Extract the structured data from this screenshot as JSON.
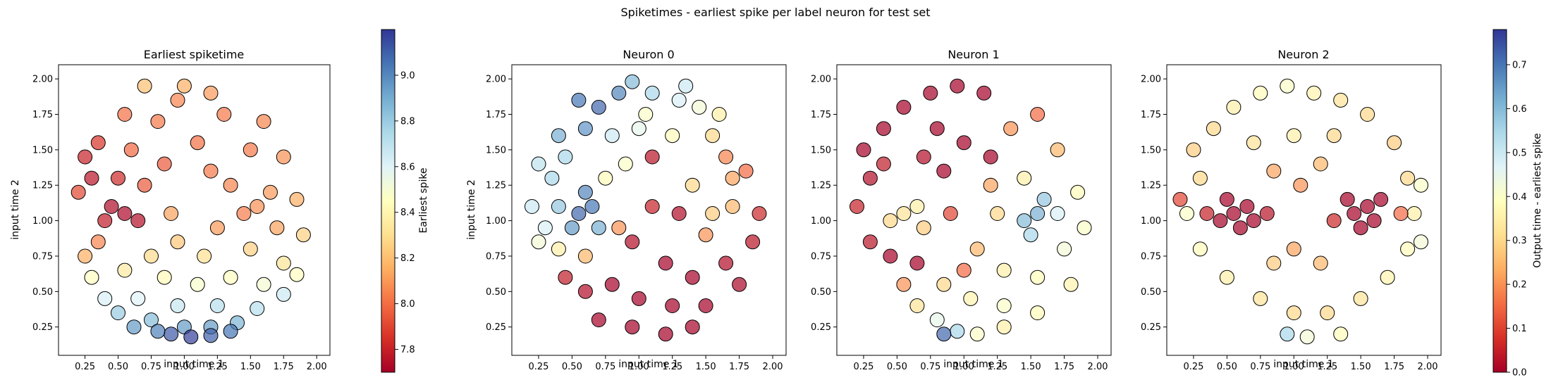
{
  "figure": {
    "suptitle": "Spiketimes - earliest spike per label neuron for test set"
  },
  "colors": {
    "cmap_low_to_high": [
      "#a50026",
      "#d73027",
      "#f46d43",
      "#fdae61",
      "#fee090",
      "#ffffbf",
      "#e0f3f8",
      "#abd9e9",
      "#74add1",
      "#4575b4",
      "#313695"
    ],
    "marker_edge": "#000000",
    "marker_alpha": 0.7
  },
  "chart_data": [
    {
      "type": "scatter",
      "title": "Earliest spiketime",
      "xlabel": "input time 1",
      "ylabel": "input time 2",
      "xlim": [
        0.05,
        2.1
      ],
      "ylim": [
        0.05,
        2.1
      ],
      "xticks": [
        "0.25",
        "0.50",
        "0.75",
        "1.00",
        "1.25",
        "1.50",
        "1.75",
        "2.00"
      ],
      "yticks": [
        "0.25",
        "0.50",
        "0.75",
        "1.00",
        "1.25",
        "1.50",
        "1.75",
        "2.00"
      ],
      "color_scale": [
        7.7,
        9.2
      ],
      "points": [
        [
          0.55,
          1.05,
          7.72
        ],
        [
          0.45,
          1.1,
          7.73
        ],
        [
          0.65,
          1.0,
          7.74
        ],
        [
          0.4,
          1.0,
          7.78
        ],
        [
          0.3,
          1.3,
          7.76
        ],
        [
          0.25,
          1.45,
          7.8
        ],
        [
          0.35,
          1.55,
          7.85
        ],
        [
          0.5,
          1.3,
          7.82
        ],
        [
          0.2,
          1.2,
          7.9
        ],
        [
          0.7,
          1.25,
          7.95
        ],
        [
          0.6,
          1.5,
          7.98
        ],
        [
          0.8,
          1.7,
          8.02
        ],
        [
          0.55,
          1.75,
          8.0
        ],
        [
          0.95,
          1.85,
          8.05
        ],
        [
          1.1,
          1.55,
          8.0
        ],
        [
          1.45,
          1.05,
          8.03
        ],
        [
          1.55,
          1.1,
          8.08
        ],
        [
          1.35,
          1.25,
          8.05
        ],
        [
          1.65,
          1.2,
          8.1
        ],
        [
          1.7,
          0.95,
          8.12
        ],
        [
          1.5,
          1.5,
          8.02
        ],
        [
          1.75,
          1.45,
          8.08
        ],
        [
          1.85,
          1.15,
          8.15
        ],
        [
          1.25,
          0.95,
          8.1
        ],
        [
          0.35,
          0.85,
          8.05
        ],
        [
          0.9,
          1.05,
          8.12
        ],
        [
          1.3,
          1.75,
          8.02
        ],
        [
          1.6,
          1.7,
          8.05
        ],
        [
          0.25,
          0.75,
          8.15
        ],
        [
          0.95,
          0.85,
          8.22
        ],
        [
          0.75,
          0.75,
          8.28
        ],
        [
          1.15,
          0.75,
          8.3
        ],
        [
          1.5,
          0.8,
          8.25
        ],
        [
          1.75,
          0.7,
          8.32
        ],
        [
          1.9,
          0.9,
          8.25
        ],
        [
          0.55,
          0.65,
          8.35
        ],
        [
          0.85,
          0.6,
          8.42
        ],
        [
          1.1,
          0.55,
          8.48
        ],
        [
          1.35,
          0.6,
          8.45
        ],
        [
          1.6,
          0.55,
          8.5
        ],
        [
          1.85,
          0.62,
          8.45
        ],
        [
          0.3,
          0.6,
          8.45
        ],
        [
          0.4,
          0.45,
          8.62
        ],
        [
          0.65,
          0.45,
          8.6
        ],
        [
          0.95,
          0.4,
          8.68
        ],
        [
          1.25,
          0.4,
          8.72
        ],
        [
          1.55,
          0.38,
          8.72
        ],
        [
          1.75,
          0.48,
          8.66
        ],
        [
          0.5,
          0.35,
          8.8
        ],
        [
          0.75,
          0.3,
          8.85
        ],
        [
          1.0,
          0.25,
          8.95
        ],
        [
          1.2,
          0.25,
          8.95
        ],
        [
          1.4,
          0.28,
          8.88
        ],
        [
          0.9,
          0.2,
          9.12
        ],
        [
          1.05,
          0.18,
          9.18
        ],
        [
          1.2,
          0.19,
          9.1
        ],
        [
          0.8,
          0.22,
          9.02
        ],
        [
          1.35,
          0.22,
          9.05
        ],
        [
          0.62,
          0.25,
          8.95
        ],
        [
          1.0,
          1.95,
          8.15
        ],
        [
          1.2,
          1.9,
          8.1
        ],
        [
          0.7,
          1.95,
          8.2
        ],
        [
          0.85,
          1.4,
          7.95
        ],
        [
          1.2,
          1.35,
          8.02
        ]
      ]
    },
    {
      "type": "scatter",
      "title": "Neuron 0",
      "xlabel": "input time 1",
      "ylabel": "input time 2",
      "xlim": [
        0.05,
        2.1
      ],
      "ylim": [
        0.05,
        2.1
      ],
      "xticks": [
        "0.25",
        "0.50",
        "0.75",
        "1.00",
        "1.25",
        "1.50",
        "1.75",
        "2.00"
      ],
      "yticks": [
        "0.25",
        "0.50",
        "0.75",
        "1.00",
        "1.25",
        "1.50",
        "1.75",
        "2.00"
      ],
      "color_scale": [
        0.0,
        0.78
      ],
      "points": [
        [
          0.55,
          1.05,
          0.72
        ],
        [
          0.65,
          1.1,
          0.7
        ],
        [
          0.5,
          0.95,
          0.65
        ],
        [
          0.7,
          0.95,
          0.62
        ],
        [
          0.6,
          1.2,
          0.68
        ],
        [
          0.4,
          1.1,
          0.58
        ],
        [
          0.35,
          1.3,
          0.55
        ],
        [
          0.25,
          1.4,
          0.52
        ],
        [
          0.2,
          1.1,
          0.5
        ],
        [
          0.3,
          0.95,
          0.48
        ],
        [
          0.45,
          1.45,
          0.55
        ],
        [
          0.4,
          1.6,
          0.62
        ],
        [
          0.6,
          1.65,
          0.66
        ],
        [
          0.7,
          1.8,
          0.72
        ],
        [
          0.55,
          1.85,
          0.7
        ],
        [
          0.85,
          1.9,
          0.68
        ],
        [
          0.95,
          1.98,
          0.6
        ],
        [
          1.1,
          1.9,
          0.55
        ],
        [
          1.3,
          1.85,
          0.48
        ],
        [
          1.45,
          1.8,
          0.42
        ],
        [
          1.6,
          1.75,
          0.35
        ],
        [
          0.8,
          1.6,
          0.5
        ],
        [
          1.0,
          1.65,
          0.45
        ],
        [
          1.25,
          1.6,
          0.38
        ],
        [
          0.9,
          1.4,
          0.4
        ],
        [
          0.75,
          1.3,
          0.38
        ],
        [
          0.25,
          0.85,
          0.42
        ],
        [
          0.4,
          0.8,
          0.35
        ],
        [
          1.4,
          1.25,
          0.3
        ],
        [
          1.55,
          1.05,
          0.28
        ],
        [
          1.7,
          1.1,
          0.25
        ],
        [
          1.5,
          0.9,
          0.2
        ],
        [
          1.8,
          1.35,
          0.15
        ],
        [
          1.65,
          1.45,
          0.18
        ],
        [
          1.1,
          1.1,
          0.05
        ],
        [
          0.95,
          0.85,
          0.02
        ],
        [
          1.2,
          0.7,
          0.0
        ],
        [
          1.4,
          0.6,
          0.0
        ],
        [
          1.65,
          0.7,
          0.02
        ],
        [
          1.85,
          0.85,
          0.03
        ],
        [
          1.9,
          1.05,
          0.06
        ],
        [
          0.8,
          0.55,
          0.0
        ],
        [
          1.0,
          0.45,
          0.0
        ],
        [
          1.25,
          0.4,
          0.0
        ],
        [
          1.5,
          0.4,
          0.0
        ],
        [
          1.75,
          0.55,
          0.01
        ],
        [
          0.6,
          0.5,
          0.02
        ],
        [
          0.45,
          0.6,
          0.04
        ],
        [
          0.7,
          0.3,
          0.0
        ],
        [
          0.95,
          0.25,
          0.0
        ],
        [
          1.2,
          0.2,
          0.0
        ],
        [
          1.4,
          0.25,
          0.0
        ],
        [
          1.1,
          1.45,
          0.03
        ],
        [
          1.3,
          1.05,
          0.02
        ],
        [
          1.55,
          1.6,
          0.3
        ],
        [
          1.7,
          1.3,
          0.22
        ],
        [
          1.05,
          1.75,
          0.4
        ],
        [
          1.35,
          1.95,
          0.5
        ],
        [
          0.6,
          0.75,
          0.25
        ],
        [
          0.85,
          0.95,
          0.2
        ]
      ]
    },
    {
      "type": "scatter",
      "title": "Neuron 1",
      "xlabel": "input time 1",
      "ylabel": "",
      "xlim": [
        0.05,
        2.1
      ],
      "ylim": [
        0.05,
        2.1
      ],
      "xticks": [
        "0.25",
        "0.50",
        "0.75",
        "1.00",
        "1.25",
        "1.50",
        "1.75",
        "2.00"
      ],
      "yticks": [
        "0.25",
        "0.50",
        "0.75",
        "1.00",
        "1.25",
        "1.50",
        "1.75",
        "2.00"
      ],
      "color_scale": [
        0.0,
        0.78
      ],
      "points": [
        [
          0.55,
          1.05,
          0.32
        ],
        [
          0.65,
          1.1,
          0.35
        ],
        [
          0.45,
          1.0,
          0.3
        ],
        [
          0.7,
          0.95,
          0.28
        ],
        [
          0.3,
          1.3,
          0.02
        ],
        [
          0.25,
          1.5,
          0.0
        ],
        [
          0.4,
          1.65,
          0.0
        ],
        [
          0.55,
          1.8,
          0.0
        ],
        [
          0.75,
          1.9,
          0.0
        ],
        [
          0.95,
          1.95,
          0.0
        ],
        [
          1.15,
          1.9,
          0.0
        ],
        [
          0.8,
          1.65,
          0.0
        ],
        [
          1.0,
          1.55,
          0.0
        ],
        [
          1.2,
          1.45,
          0.0
        ],
        [
          0.85,
          1.35,
          0.0
        ],
        [
          0.2,
          1.1,
          0.05
        ],
        [
          0.3,
          0.85,
          0.03
        ],
        [
          0.45,
          0.75,
          0.0
        ],
        [
          0.65,
          0.7,
          0.0
        ],
        [
          0.9,
          1.05,
          0.1
        ],
        [
          1.35,
          1.65,
          0.2
        ],
        [
          1.55,
          1.75,
          0.15
        ],
        [
          1.7,
          1.5,
          0.25
        ],
        [
          1.45,
          1.3,
          0.35
        ],
        [
          1.55,
          1.05,
          0.62
        ],
        [
          1.45,
          1.0,
          0.6
        ],
        [
          1.6,
          1.15,
          0.58
        ],
        [
          1.5,
          0.9,
          0.55
        ],
        [
          1.7,
          1.05,
          0.48
        ],
        [
          1.85,
          1.2,
          0.38
        ],
        [
          1.9,
          0.95,
          0.4
        ],
        [
          1.75,
          0.8,
          0.42
        ],
        [
          1.25,
          1.05,
          0.3
        ],
        [
          1.1,
          0.8,
          0.25
        ],
        [
          1.3,
          0.65,
          0.35
        ],
        [
          1.55,
          0.6,
          0.38
        ],
        [
          1.8,
          0.55,
          0.36
        ],
        [
          0.85,
          0.55,
          0.3
        ],
        [
          1.05,
          0.45,
          0.36
        ],
        [
          1.3,
          0.4,
          0.4
        ],
        [
          1.55,
          0.35,
          0.38
        ],
        [
          0.65,
          0.4,
          0.32
        ],
        [
          0.8,
          0.3,
          0.45
        ],
        [
          0.95,
          0.22,
          0.55
        ],
        [
          0.85,
          0.2,
          0.72
        ],
        [
          1.1,
          0.2,
          0.4
        ],
        [
          1.3,
          0.25,
          0.35
        ],
        [
          0.55,
          0.55,
          0.2
        ],
        [
          1.0,
          0.65,
          0.15
        ],
        [
          1.2,
          1.25,
          0.22
        ],
        [
          0.7,
          1.45,
          0.02
        ],
        [
          0.4,
          1.4,
          0.04
        ]
      ]
    },
    {
      "type": "scatter",
      "title": "Neuron 2",
      "xlabel": "input time 1",
      "ylabel": "",
      "xlim": [
        0.05,
        2.1
      ],
      "ylim": [
        0.05,
        2.1
      ],
      "xticks": [
        "0.25",
        "0.50",
        "0.75",
        "1.00",
        "1.25",
        "1.50",
        "1.75",
        "2.00"
      ],
      "yticks": [
        "0.25",
        "0.50",
        "0.75",
        "1.00",
        "1.25",
        "1.50",
        "1.75",
        "2.00"
      ],
      "color_scale": [
        0.0,
        0.78
      ],
      "points": [
        [
          0.55,
          1.05,
          0.0
        ],
        [
          0.65,
          1.1,
          0.0
        ],
        [
          0.45,
          1.0,
          0.0
        ],
        [
          0.6,
          0.95,
          0.0
        ],
        [
          0.5,
          1.15,
          0.0
        ],
        [
          0.7,
          1.0,
          0.0
        ],
        [
          1.45,
          1.05,
          0.0
        ],
        [
          1.55,
          1.1,
          0.0
        ],
        [
          1.5,
          0.95,
          0.0
        ],
        [
          1.6,
          1.0,
          0.0
        ],
        [
          1.4,
          1.15,
          0.0
        ],
        [
          1.65,
          1.15,
          0.0
        ],
        [
          0.3,
          1.3,
          0.3
        ],
        [
          0.25,
          1.5,
          0.28
        ],
        [
          0.4,
          1.65,
          0.3
        ],
        [
          0.55,
          1.8,
          0.35
        ],
        [
          0.75,
          1.9,
          0.38
        ],
        [
          0.95,
          1.95,
          0.4
        ],
        [
          1.15,
          1.9,
          0.36
        ],
        [
          1.35,
          1.85,
          0.32
        ],
        [
          1.55,
          1.75,
          0.3
        ],
        [
          1.75,
          1.55,
          0.28
        ],
        [
          1.85,
          1.3,
          0.3
        ],
        [
          1.9,
          1.05,
          0.35
        ],
        [
          1.85,
          0.8,
          0.38
        ],
        [
          1.7,
          0.6,
          0.36
        ],
        [
          1.5,
          0.45,
          0.32
        ],
        [
          1.25,
          0.35,
          0.3
        ],
        [
          1.0,
          0.35,
          0.3
        ],
        [
          0.75,
          0.45,
          0.32
        ],
        [
          0.5,
          0.6,
          0.35
        ],
        [
          0.3,
          0.8,
          0.38
        ],
        [
          0.2,
          1.05,
          0.4
        ],
        [
          0.85,
          1.35,
          0.22
        ],
        [
          1.05,
          1.25,
          0.2
        ],
        [
          1.2,
          1.4,
          0.25
        ],
        [
          1.0,
          0.8,
          0.22
        ],
        [
          1.2,
          0.7,
          0.25
        ],
        [
          0.85,
          0.7,
          0.28
        ],
        [
          1.0,
          1.6,
          0.35
        ],
        [
          1.3,
          1.6,
          0.3
        ],
        [
          0.7,
          1.55,
          0.32
        ],
        [
          0.95,
          0.2,
          0.55
        ],
        [
          1.1,
          0.18,
          0.42
        ],
        [
          1.35,
          0.2,
          0.38
        ],
        [
          0.35,
          1.05,
          0.05
        ],
        [
          0.8,
          1.05,
          0.03
        ],
        [
          1.3,
          1.0,
          0.06
        ],
        [
          1.8,
          1.05,
          0.15
        ],
        [
          1.95,
          1.25,
          0.4
        ],
        [
          0.15,
          1.15,
          0.1
        ],
        [
          1.95,
          0.85,
          0.42
        ]
      ]
    }
  ],
  "colorbars": [
    {
      "label": "Earliest spike",
      "range": [
        7.7,
        9.2
      ],
      "ticks": [
        "7.8",
        "8.0",
        "8.2",
        "8.4",
        "8.6",
        "8.8",
        "9.0"
      ],
      "tick_values": [
        7.8,
        8.0,
        8.2,
        8.4,
        8.6,
        8.8,
        9.0
      ]
    },
    {
      "label": "Output time - earliest spike",
      "range": [
        0.0,
        0.78
      ],
      "ticks": [
        "0.0",
        "0.1",
        "0.2",
        "0.3",
        "0.4",
        "0.5",
        "0.6",
        "0.7"
      ],
      "tick_values": [
        0.0,
        0.1,
        0.2,
        0.3,
        0.4,
        0.5,
        0.6,
        0.7
      ]
    }
  ]
}
